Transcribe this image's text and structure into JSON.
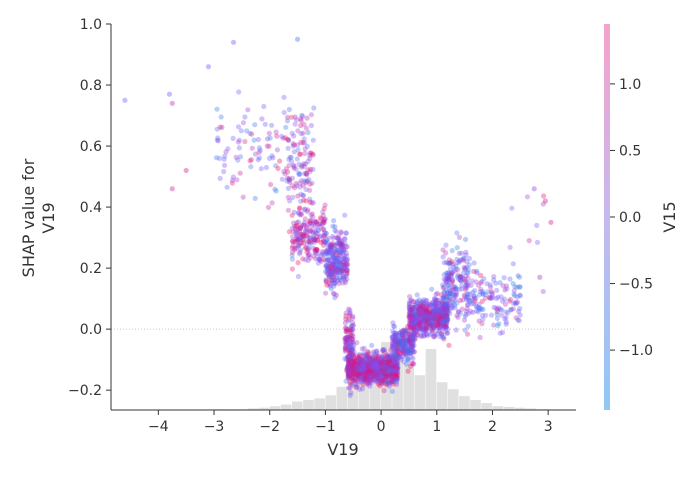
{
  "chart_data": {
    "type": "scatter",
    "title": "",
    "xlabel": "V19",
    "ylabel_lines": [
      "SHAP value for",
      "V19"
    ],
    "colorbar_label": "V15",
    "xlim": [
      -4.85,
      3.5
    ],
    "ylim": [
      -0.265,
      1.0
    ],
    "x_ticks": [
      -4,
      -3,
      -2,
      -1,
      0,
      1,
      2,
      3
    ],
    "x_tick_labels": [
      "−4",
      "−3",
      "−2",
      "−1",
      "0",
      "1",
      "2",
      "3"
    ],
    "y_ticks": [
      -0.2,
      0.0,
      0.2,
      0.4,
      0.6,
      0.8,
      1.0
    ],
    "y_tick_labels": [
      "−0.2",
      "0.0",
      "0.2",
      "0.4",
      "0.6",
      "0.8",
      "1.0"
    ],
    "colorbar_range": [
      -1.45,
      1.45
    ],
    "colorbar_ticks": [
      -1.0,
      -0.5,
      0.0,
      0.5,
      1.0
    ],
    "colorbar_tick_labels": [
      "−1.0",
      "−0.5",
      "0.0",
      "0.5",
      "1.0"
    ],
    "colors": {
      "low": "#8fc8f5",
      "mid": "#c6b9ee",
      "high": "#f6a2cb",
      "axis": "#333333",
      "histogram": "#cccccc"
    },
    "zero_line": true,
    "histogram": {
      "bin_edges": [
        -3.0,
        -2.8,
        -2.6,
        -2.4,
        -2.2,
        -2.0,
        -1.8,
        -1.6,
        -1.4,
        -1.2,
        -1.0,
        -0.8,
        -0.6,
        -0.4,
        -0.2,
        0.0,
        0.2,
        0.4,
        0.6,
        0.8,
        1.0,
        1.2,
        1.4,
        1.6,
        1.8,
        2.0,
        2.2,
        2.4,
        2.6,
        2.8,
        3.0
      ],
      "heights_fraction": [
        0.01,
        0.01,
        0.01,
        0.02,
        0.03,
        0.05,
        0.07,
        0.11,
        0.13,
        0.15,
        0.19,
        0.3,
        0.62,
        0.74,
        0.58,
        0.88,
        0.72,
        0.6,
        0.45,
        0.79,
        0.36,
        0.27,
        0.18,
        0.13,
        0.09,
        0.05,
        0.04,
        0.03,
        0.02,
        0.01
      ]
    },
    "point_clusters": [
      {
        "x_range": [
          -3.0,
          -1.7
        ],
        "y_center": 0.58,
        "y_spread": 0.14,
        "count": 90,
        "v15_bias": 0.2
      },
      {
        "x_range": [
          -1.7,
          -1.2
        ],
        "y_center": 0.55,
        "y_spread": 0.15,
        "count": 120,
        "v15_bias": 0.2
      },
      {
        "x_range": [
          -1.6,
          -1.0
        ],
        "y_center": 0.3,
        "y_spread": 0.08,
        "count": 200,
        "v15_bias": 0.5
      },
      {
        "x_range": [
          -1.0,
          -0.6
        ],
        "y_center": 0.22,
        "y_spread": 0.09,
        "count": 260,
        "v15_bias": 0.0
      },
      {
        "x_range": [
          -0.65,
          -0.5
        ],
        "y_center": -0.05,
        "y_spread": 0.1,
        "count": 120,
        "v15_bias": 0.3
      },
      {
        "x_range": [
          -0.6,
          0.3
        ],
        "y_center": -0.13,
        "y_spread": 0.04,
        "count": 900,
        "v15_bias": 0.4
      },
      {
        "x_range": [
          0.2,
          0.6
        ],
        "y_center": -0.05,
        "y_spread": 0.05,
        "count": 250,
        "v15_bias": 0.0
      },
      {
        "x_range": [
          0.5,
          1.2
        ],
        "y_center": 0.04,
        "y_spread": 0.05,
        "count": 600,
        "v15_bias": 0.2
      },
      {
        "x_range": [
          1.1,
          1.6
        ],
        "y_center": 0.15,
        "y_spread": 0.1,
        "count": 180,
        "v15_bias": 0.0
      },
      {
        "x_range": [
          1.5,
          2.5
        ],
        "y_center": 0.1,
        "y_spread": 0.08,
        "count": 140,
        "v15_bias": -0.1
      },
      {
        "x_range": [
          2.3,
          3.1
        ],
        "y_center": 0.3,
        "y_spread": 0.12,
        "count": 10,
        "v15_bias": 0.2
      }
    ],
    "outliers": [
      {
        "x": -4.6,
        "y": 0.75,
        "v15": -0.4
      },
      {
        "x": -3.8,
        "y": 0.77,
        "v15": -0.3
      },
      {
        "x": -3.75,
        "y": 0.74,
        "v15": 0.6
      },
      {
        "x": -3.75,
        "y": 0.46,
        "v15": 0.8
      },
      {
        "x": -3.5,
        "y": 0.52,
        "v15": 0.9
      },
      {
        "x": -3.1,
        "y": 0.86,
        "v15": -0.3
      },
      {
        "x": -2.65,
        "y": 0.94,
        "v15": -0.2
      },
      {
        "x": -1.5,
        "y": 0.95,
        "v15": -0.9
      },
      {
        "x": 2.75,
        "y": 0.46,
        "v15": 0.3
      },
      {
        "x": 2.95,
        "y": 0.42,
        "v15": 0.9
      },
      {
        "x": 3.05,
        "y": 0.35,
        "v15": 1.0
      },
      {
        "x": 2.85,
        "y": 0.17,
        "v15": 0.5
      }
    ]
  }
}
